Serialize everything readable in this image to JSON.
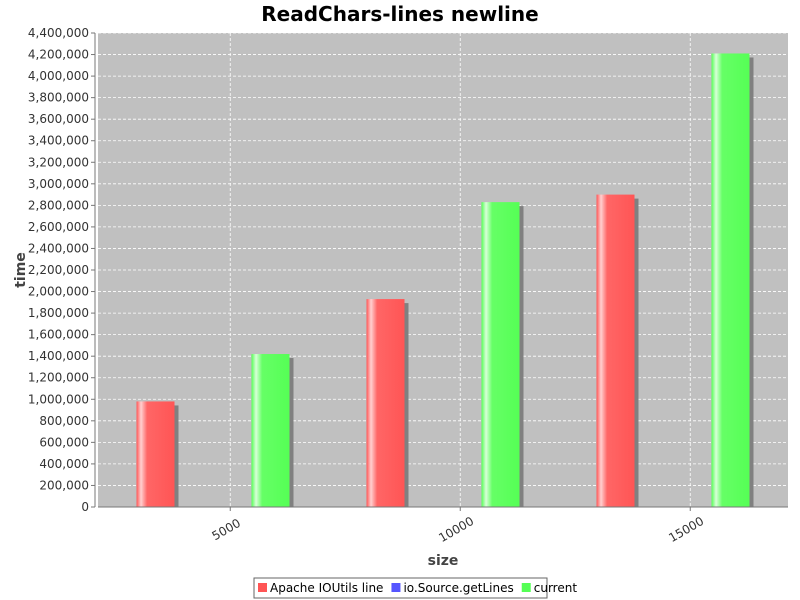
{
  "chart_data": {
    "type": "bar",
    "title": "ReadChars-lines newline",
    "xlabel": "size",
    "ylabel": "time",
    "x_ticks": [
      "5000",
      "10000",
      "15000"
    ],
    "ylim": [
      0,
      4400000
    ],
    "y_ticks": [
      0,
      200000,
      400000,
      600000,
      800000,
      1000000,
      1200000,
      1400000,
      1600000,
      1800000,
      2000000,
      2200000,
      2400000,
      2600000,
      2800000,
      3000000,
      3200000,
      3400000,
      3600000,
      3800000,
      4000000,
      4200000,
      4400000
    ],
    "grid": true,
    "legend_position": "bottom",
    "series": [
      {
        "name": "Apache IOUtils line",
        "color": "#ff5555"
      },
      {
        "name": "io.Source.getLines",
        "color": "#5555ff"
      },
      {
        "name": "current",
        "color": "#55ff55"
      }
    ],
    "bars": [
      {
        "series": "Apache IOUtils line",
        "value": 980000
      },
      {
        "series": "current",
        "value": 1420000
      },
      {
        "series": "Apache IOUtils line",
        "value": 1930000
      },
      {
        "series": "current",
        "value": 2830000
      },
      {
        "series": "Apache IOUtils line",
        "value": 2900000
      },
      {
        "series": "current",
        "value": 4210000
      }
    ]
  }
}
